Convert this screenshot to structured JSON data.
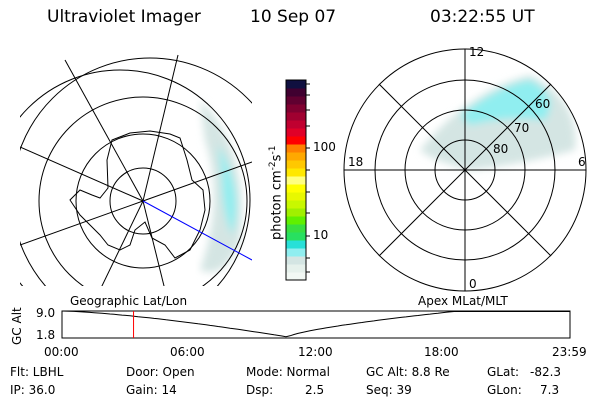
{
  "header": {
    "instrument": "Ultraviolet Imager",
    "date": "10 Sep 07",
    "time": "03:22:55 UT"
  },
  "colorbar": {
    "label": "photon cm",
    "label_exp1": "-2",
    "label_s": "s",
    "label_exp2": "-1",
    "ticks": [
      "100",
      "10"
    ],
    "scale": "log",
    "colors": [
      "#f2f8f4",
      "#e6f1ec",
      "#d4e5e3",
      "#90eef0",
      "#28e0d8",
      "#28e060",
      "#38e040",
      "#60f000",
      "#a0f000",
      "#c8f800",
      "#e8f800",
      "#ffff00",
      "#ffff80",
      "#ffe800",
      "#ffc800",
      "#ffa800",
      "#ff8000",
      "#ff0000",
      "#e00028",
      "#c00030",
      "#a00030",
      "#800030",
      "#600030",
      "#400030",
      "#101040"
    ]
  },
  "left_map": {
    "label": "Geographic Lat/Lon",
    "trajectory_color": "#0000ff"
  },
  "right_map": {
    "label": "Apex MLat/MLT",
    "mlt_labels": [
      "12",
      "18",
      "6",
      "0"
    ],
    "lat_labels": [
      "60",
      "70",
      "80"
    ]
  },
  "altitude_plot": {
    "ylabel": "GC Alt",
    "yticks": [
      "9.0",
      "1.8"
    ],
    "xticks": [
      "00:00",
      "06:00",
      "12:00",
      "18:00",
      "23:59"
    ],
    "current_time_hours": 3.38,
    "marker_color": "#ff0000"
  },
  "info": {
    "flt": "Flt: LBHL",
    "ip": "IP: 36.0",
    "door": "Door: Open",
    "gain": "Gain: 14",
    "mode": "Mode: Normal",
    "dsp_label": "Dsp:",
    "dsp_value": "2.5",
    "gc_alt": "GC Alt: 8.8 Re",
    "seq": "Seq: 39",
    "glat_label": "GLat:",
    "glat_value": "-82.3",
    "glon_label": "GLon:",
    "glon_value": "7.3"
  }
}
